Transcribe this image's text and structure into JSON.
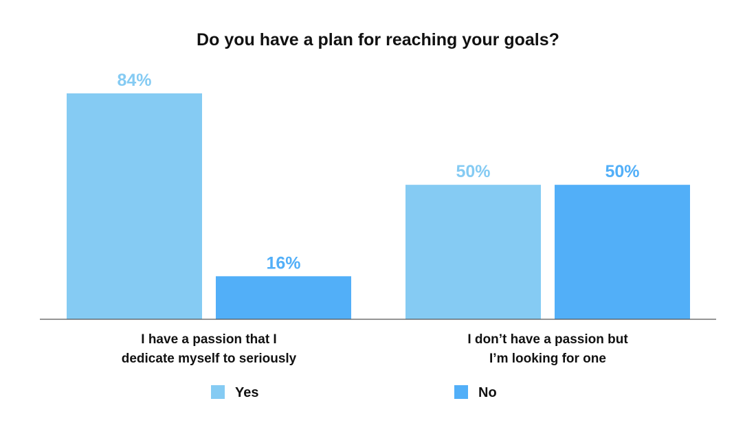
{
  "chart_data": {
    "type": "bar",
    "title": "Do you have a plan for reaching your goals?",
    "categories": [
      [
        "I have a passion that I",
        "dedicate myself to seriously"
      ],
      [
        "I don’t have a passion but",
        "I’m looking for one"
      ]
    ],
    "series": [
      {
        "name": "Yes",
        "values": [
          84,
          50
        ],
        "color": "#85CBF3",
        "label_color": "#85CBF3"
      },
      {
        "name": "No",
        "values": [
          16,
          50
        ],
        "color": "#52AFF8",
        "label_color": "#52AFF8"
      }
    ],
    "value_suffix": "%",
    "ylim": [
      0,
      100
    ],
    "grid": false,
    "legend_position": "bottom",
    "axis_color": "#555555"
  }
}
